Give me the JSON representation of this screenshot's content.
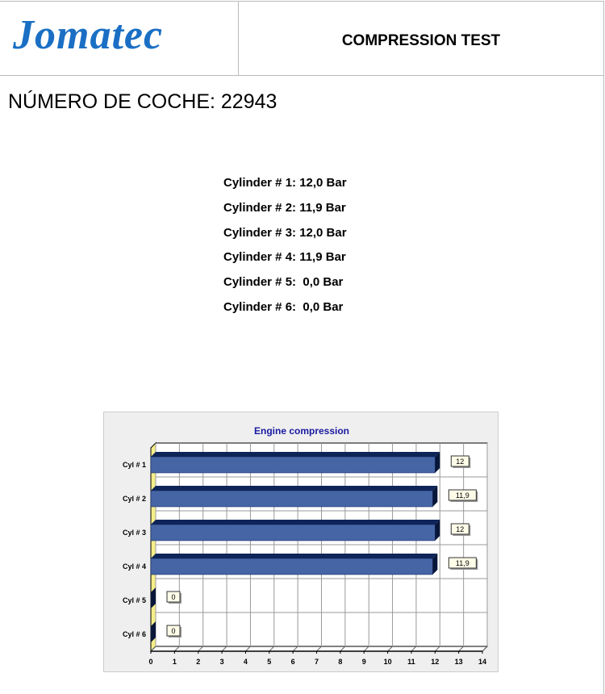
{
  "header": {
    "logo_text": "Jomatec",
    "title": "COMPRESSION TEST"
  },
  "car_number": "NÚMERO DE COCHE: 22943",
  "results": [
    "Cylinder # 1: 12,0 Bar",
    "Cylinder # 2: 11,9 Bar",
    "Cylinder # 3: 12,0 Bar",
    "Cylinder # 4: 11,9 Bar",
    "Cylinder # 5:  0,0 Bar",
    "Cylinder # 6:  0,0 Bar"
  ],
  "colors": {
    "logo": "#1a6fc4",
    "bar_face": "#4565a5",
    "bar_top": "#0f2458",
    "title": "#1a1aa0",
    "wall": "#f5ee8a"
  },
  "chart_data": {
    "type": "bar",
    "orientation": "horizontal",
    "title": "Engine compression",
    "categories": [
      "Cyl # 1",
      "Cyl # 2",
      "Cyl # 3",
      "Cyl # 4",
      "Cyl # 5",
      "Cyl # 6"
    ],
    "values": [
      12,
      11.9,
      12,
      11.9,
      0,
      0
    ],
    "data_labels": [
      "12",
      "11,9",
      "12",
      "11,9",
      "0",
      "0"
    ],
    "xlim": [
      0,
      14
    ],
    "xticks": [
      "0",
      "1",
      "2",
      "3",
      "4",
      "5",
      "6",
      "7",
      "8",
      "9",
      "10",
      "11",
      "12",
      "13",
      "14"
    ],
    "grid": true,
    "style": "3d"
  }
}
